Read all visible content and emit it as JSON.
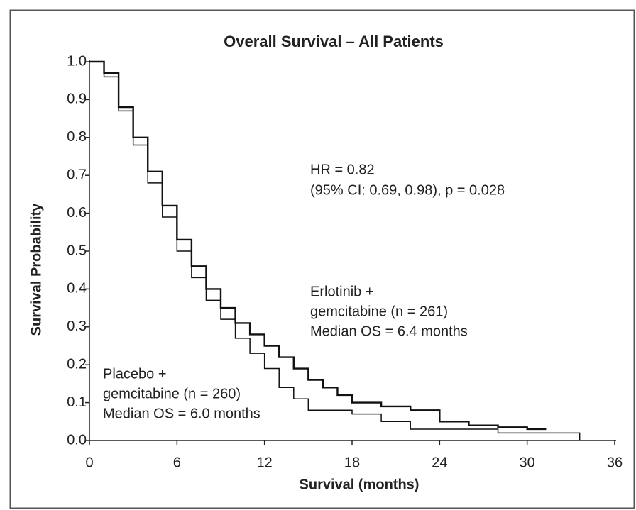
{
  "chart_data": {
    "type": "step",
    "title": "Overall Survival – All Patients",
    "x_label": "Survival (months)",
    "y_label": "Survival Probability",
    "xlim": [
      0,
      36
    ],
    "xticks": [
      0,
      6,
      12,
      18,
      24,
      30,
      36
    ],
    "ylim": [
      0,
      1
    ],
    "yticks": [
      {
        "value": 0,
        "label": "0.0"
      },
      0.1,
      0.2,
      0.3,
      0.4,
      0.5,
      0.6,
      0.7,
      0.8,
      0.9,
      {
        "value": 1,
        "label": "1.0"
      }
    ],
    "series": [
      {
        "name": "Erlotinib + gemcitabine",
        "color": "#111111",
        "x": [
          0,
          1,
          2,
          3,
          4,
          5,
          6,
          7,
          8,
          9,
          10,
          11,
          12,
          13,
          14,
          15,
          16,
          17,
          18,
          20,
          22,
          24,
          26,
          28,
          30,
          31.3
        ],
        "values": [
          1,
          0.97,
          0.88,
          0.8,
          0.71,
          0.62,
          0.53,
          0.46,
          0.4,
          0.35,
          0.31,
          0.28,
          0.25,
          0.22,
          0.19,
          0.16,
          0.14,
          0.12,
          0.1,
          0.09,
          0.08,
          0.05,
          0.04,
          0.035,
          0.03,
          0.03
        ]
      },
      {
        "name": "Placebo + gemcitabine",
        "color": "#111111",
        "x": [
          0,
          1,
          2,
          3,
          4,
          5,
          6,
          7,
          8,
          9,
          10,
          11,
          12,
          13,
          14,
          15,
          17,
          18,
          20,
          22,
          24,
          28,
          33.6
        ],
        "values": [
          1,
          0.96,
          0.87,
          0.78,
          0.68,
          0.59,
          0.5,
          0.43,
          0.37,
          0.32,
          0.27,
          0.23,
          0.19,
          0.14,
          0.11,
          0.08,
          0.08,
          0.07,
          0.05,
          0.03,
          0.03,
          0.02,
          0
        ]
      }
    ],
    "annotations": [
      [
        "HR = 0.82",
        "(95% CI: 0.69, 0.98), p = 0.028"
      ],
      [
        "Erlotinib +",
        "gemcitabine (n = 261)",
        "Median OS = 6.4 months"
      ],
      [
        "Placebo +",
        "gemcitabine (n = 260)",
        "Median OS = 6.0 months"
      ]
    ]
  }
}
